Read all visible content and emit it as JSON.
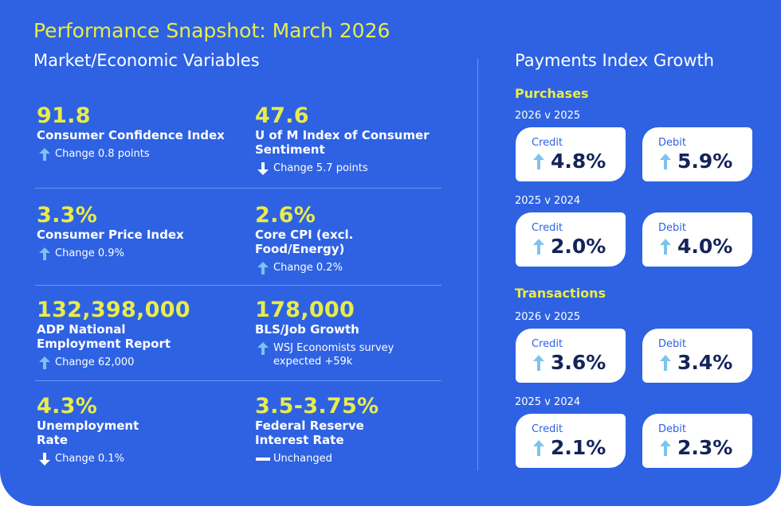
{
  "colors": {
    "background": "#2e62e3",
    "accent": "#e9ec4a",
    "arrow": "#7dc3f0",
    "card_text": "#14235a"
  },
  "header": {
    "title": "Performance Snapshot: March 2026",
    "left_subtitle": "Market/Economic Variables",
    "right_title": "Payments Index Growth"
  },
  "metrics": [
    {
      "value": "91.8",
      "label": "Consumer Confidence Index",
      "direction": "up",
      "change": "Change 0.8 points"
    },
    {
      "value": "47.6",
      "label": "U of M Index of Consumer Sentiment",
      "direction": "down",
      "change": "Change 5.7 points"
    },
    {
      "value": "3.3%",
      "label": "Consumer Price Index",
      "direction": "up",
      "change": "Change 0.9%"
    },
    {
      "value": "2.6%",
      "label": "Core CPI (excl. Food/Energy)",
      "direction": "up",
      "change": "Change 0.2%"
    },
    {
      "value": "132,398,000",
      "label": "ADP National Employment Report",
      "direction": "up",
      "change": "Change 62,000"
    },
    {
      "value": "178,000",
      "label": "BLS/Job Growth",
      "direction": "up",
      "change": "WSJ Economists survey expected +59k"
    },
    {
      "value": "4.3%",
      "label": "Unemployment Rate",
      "direction": "down",
      "change": "Change 0.1%"
    },
    {
      "value": "3.5-3.75%",
      "label": "Federal Reserve Interest Rate",
      "direction": "flat",
      "change": "Unchanged"
    }
  ],
  "payments": {
    "purchases": {
      "label": "Purchases",
      "periods": [
        {
          "period": "2026 v 2025",
          "credit_label": "Credit",
          "credit": "4.8%",
          "debit_label": "Debit",
          "debit": "5.9%"
        },
        {
          "period": "2025 v 2024",
          "credit_label": "Credit",
          "credit": "2.0%",
          "debit_label": "Debit",
          "debit": "4.0%"
        }
      ]
    },
    "transactions": {
      "label": "Transactions",
      "periods": [
        {
          "period": "2026 v 2025",
          "credit_label": "Credit",
          "credit": "3.6%",
          "debit_label": "Debit",
          "debit": "3.4%"
        },
        {
          "period": "2025 v 2024",
          "credit_label": "Credit",
          "credit": "2.1%",
          "debit_label": "Debit",
          "debit": "2.3%"
        }
      ]
    }
  }
}
